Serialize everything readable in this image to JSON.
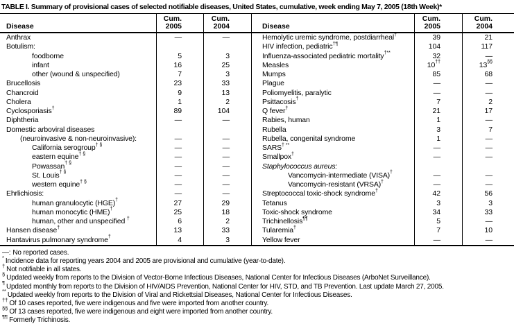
{
  "title": "TABLE I. Summary of provisional cases of selected notifiable diseases, United States, cumulative, week ending May 7, 2005 (18th Week)*",
  "table": {
    "header": {
      "disease": "Disease",
      "cum": "Cum.",
      "y2005": "2005",
      "y2004": "2004"
    },
    "left_rows": [
      {
        "label": "Anthrax",
        "sup": "",
        "indent": 0,
        "italic": false,
        "v05": "—",
        "v05sup": "",
        "v04": "—",
        "v04sup": ""
      },
      {
        "label": "Botulism:",
        "sup": "",
        "indent": 0,
        "italic": false,
        "v05": "",
        "v05sup": "",
        "v04": "",
        "v04sup": ""
      },
      {
        "label": "foodborne",
        "sup": "",
        "indent": 2,
        "italic": false,
        "v05": "5",
        "v05sup": "",
        "v04": "3",
        "v04sup": ""
      },
      {
        "label": "infant",
        "sup": "",
        "indent": 2,
        "italic": false,
        "v05": "16",
        "v05sup": "",
        "v04": "25",
        "v04sup": ""
      },
      {
        "label": "other (wound & unspecified)",
        "sup": "",
        "indent": 2,
        "italic": false,
        "v05": "7",
        "v05sup": "",
        "v04": "3",
        "v04sup": ""
      },
      {
        "label": "Brucellosis",
        "sup": "",
        "indent": 0,
        "italic": false,
        "v05": "23",
        "v05sup": "",
        "v04": "33",
        "v04sup": ""
      },
      {
        "label": "Chancroid",
        "sup": "",
        "indent": 0,
        "italic": false,
        "v05": "9",
        "v05sup": "",
        "v04": "13",
        "v04sup": ""
      },
      {
        "label": "Cholera",
        "sup": "",
        "indent": 0,
        "italic": false,
        "v05": "1",
        "v05sup": "",
        "v04": "2",
        "v04sup": ""
      },
      {
        "label": "Cyclosporiasis",
        "sup": "†",
        "indent": 0,
        "italic": false,
        "v05": "89",
        "v05sup": "",
        "v04": "104",
        "v04sup": ""
      },
      {
        "label": "Diphtheria",
        "sup": "",
        "indent": 0,
        "italic": false,
        "v05": "—",
        "v05sup": "",
        "v04": "—",
        "v04sup": ""
      },
      {
        "label": "Domestic arboviral diseases",
        "sup": "",
        "indent": 0,
        "italic": false,
        "v05": "",
        "v05sup": "",
        "v04": "",
        "v04sup": ""
      },
      {
        "label": "(neuroinvasive & non-neuroinvasive):",
        "sup": "",
        "indent": 1,
        "italic": false,
        "v05": "—",
        "v05sup": "",
        "v04": "—",
        "v04sup": ""
      },
      {
        "label": "California serogroup",
        "sup": "† §",
        "indent": 2,
        "italic": false,
        "v05": "—",
        "v05sup": "",
        "v04": "—",
        "v04sup": ""
      },
      {
        "label": "eastern equine",
        "sup": "† §",
        "indent": 2,
        "italic": false,
        "v05": "—",
        "v05sup": "",
        "v04": "—",
        "v04sup": ""
      },
      {
        "label": "Powassan",
        "sup": "† §",
        "indent": 2,
        "italic": false,
        "v05": "—",
        "v05sup": "",
        "v04": "—",
        "v04sup": ""
      },
      {
        "label": "St. Louis",
        "sup": "† §",
        "indent": 2,
        "italic": false,
        "v05": "—",
        "v05sup": "",
        "v04": "—",
        "v04sup": ""
      },
      {
        "label": "western equine",
        "sup": "† §",
        "indent": 2,
        "italic": false,
        "v05": "—",
        "v05sup": "",
        "v04": "—",
        "v04sup": ""
      },
      {
        "label": "Ehrlichiosis:",
        "sup": "",
        "indent": 0,
        "italic": false,
        "v05": "—",
        "v05sup": "",
        "v04": "—",
        "v04sup": ""
      },
      {
        "label": "human granulocytic (HGE)",
        "sup": "†",
        "indent": 2,
        "italic": false,
        "v05": "27",
        "v05sup": "",
        "v04": "29",
        "v04sup": ""
      },
      {
        "label": "human monocytic (HME)",
        "sup": "†",
        "indent": 2,
        "italic": false,
        "v05": "25",
        "v05sup": "",
        "v04": "18",
        "v04sup": ""
      },
      {
        "label": "human, other and unspecified ",
        "sup": "†",
        "indent": 2,
        "italic": false,
        "v05": "6",
        "v05sup": "",
        "v04": "2",
        "v04sup": ""
      },
      {
        "label": "Hansen disease",
        "sup": "†",
        "indent": 0,
        "italic": false,
        "v05": "13",
        "v05sup": "",
        "v04": "33",
        "v04sup": ""
      },
      {
        "label": "Hantavirus pulmonary syndrome",
        "sup": "†",
        "indent": 0,
        "italic": false,
        "v05": "4",
        "v05sup": "",
        "v04": "3",
        "v04sup": ""
      }
    ],
    "right_rows": [
      {
        "label": "Hemolytic uremic syndrome, postdiarrheal",
        "sup": "†",
        "indent": 0,
        "italic": false,
        "v05": "39",
        "v05sup": "",
        "v04": "21",
        "v04sup": ""
      },
      {
        "label": "HIV infection, pediatric",
        "sup": "†¶",
        "indent": 0,
        "italic": false,
        "v05": "104",
        "v05sup": "",
        "v04": "117",
        "v04sup": ""
      },
      {
        "label": "Influenza-associated pediatric mortality",
        "sup": "†**",
        "indent": 0,
        "italic": false,
        "v05": "32",
        "v05sup": "",
        "v04": "—",
        "v04sup": ""
      },
      {
        "label": "Measles",
        "sup": "",
        "indent": 0,
        "italic": false,
        "v05": "10",
        "v05sup": "††",
        "v04": "13",
        "v04sup": "§§"
      },
      {
        "label": "Mumps",
        "sup": "",
        "indent": 0,
        "italic": false,
        "v05": "85",
        "v05sup": "",
        "v04": "68",
        "v04sup": ""
      },
      {
        "label": "Plague",
        "sup": "",
        "indent": 0,
        "italic": false,
        "v05": "—",
        "v05sup": "",
        "v04": "—",
        "v04sup": ""
      },
      {
        "label": "Poliomyelitis, paralytic",
        "sup": "",
        "indent": 0,
        "italic": false,
        "v05": "—",
        "v05sup": "",
        "v04": "—",
        "v04sup": ""
      },
      {
        "label": "Psittacosis",
        "sup": "†",
        "indent": 0,
        "italic": false,
        "v05": "7",
        "v05sup": "",
        "v04": "2",
        "v04sup": ""
      },
      {
        "label": "Q fever",
        "sup": "†",
        "indent": 0,
        "italic": false,
        "v05": "21",
        "v05sup": "",
        "v04": "17",
        "v04sup": ""
      },
      {
        "label": "Rabies, human",
        "sup": "",
        "indent": 0,
        "italic": false,
        "v05": "1",
        "v05sup": "",
        "v04": "—",
        "v04sup": ""
      },
      {
        "label": "Rubella",
        "sup": "",
        "indent": 0,
        "italic": false,
        "v05": "3",
        "v05sup": "",
        "v04": "7",
        "v04sup": ""
      },
      {
        "label": "Rubella, congenital syndrome",
        "sup": "",
        "indent": 0,
        "italic": false,
        "v05": "1",
        "v05sup": "",
        "v04": "—",
        "v04sup": ""
      },
      {
        "label": "SARS",
        "sup": "† **",
        "indent": 0,
        "italic": false,
        "v05": "—",
        "v05sup": "",
        "v04": "—",
        "v04sup": ""
      },
      {
        "label": "Smallpox",
        "sup": "†",
        "indent": 0,
        "italic": false,
        "v05": "—",
        "v05sup": "",
        "v04": "—",
        "v04sup": ""
      },
      {
        "label": "Staphylococcus aureus:",
        "sup": "",
        "indent": 0,
        "italic": true,
        "v05": "",
        "v05sup": "",
        "v04": "",
        "v04sup": ""
      },
      {
        "label": "Vancomycin-intermediate (VISA)",
        "sup": "†",
        "indent": 2,
        "italic": false,
        "v05": "—",
        "v05sup": "",
        "v04": "—",
        "v04sup": ""
      },
      {
        "label": "Vancomycin-resistant (VRSA)",
        "sup": "†",
        "indent": 2,
        "italic": false,
        "v05": "—",
        "v05sup": "",
        "v04": "—",
        "v04sup": ""
      },
      {
        "label": "Streptococcal toxic-shock syndrome",
        "sup": "†",
        "indent": 0,
        "italic": false,
        "v05": "42",
        "v05sup": "",
        "v04": "56",
        "v04sup": ""
      },
      {
        "label": "Tetanus",
        "sup": "",
        "indent": 0,
        "italic": false,
        "v05": "3",
        "v05sup": "",
        "v04": "3",
        "v04sup": ""
      },
      {
        "label": "Toxic-shock syndrome",
        "sup": "",
        "indent": 0,
        "italic": false,
        "v05": "34",
        "v05sup": "",
        "v04": "33",
        "v04sup": ""
      },
      {
        "label": "Trichinellosis",
        "sup": "¶¶",
        "indent": 0,
        "italic": false,
        "v05": "5",
        "v05sup": "",
        "v04": "—",
        "v04sup": ""
      },
      {
        "label": "Tularemia",
        "sup": "†",
        "indent": 0,
        "italic": false,
        "v05": "7",
        "v05sup": "",
        "v04": "10",
        "v04sup": ""
      },
      {
        "label": "Yellow fever",
        "sup": "",
        "indent": 0,
        "italic": false,
        "v05": "—",
        "v05sup": "",
        "v04": "—",
        "v04sup": ""
      }
    ]
  },
  "footnotes": [
    {
      "marker": "—:",
      "superscript": false,
      "text": "No reported cases."
    },
    {
      "marker": "*",
      "superscript": true,
      "text": "Incidence data for reporting years 2004 and 2005 are provisional and cumulative (year-to-date)."
    },
    {
      "marker": "†",
      "superscript": true,
      "text": "Not notifiable in all states."
    },
    {
      "marker": "§",
      "superscript": true,
      "text": "Updated weekly from reports to the Division of Vector-Borne Infectious Diseases, National Center for Infectious Diseases (ArboNet Surveillance)."
    },
    {
      "marker": "¶",
      "superscript": true,
      "text": "Updated monthly from reports to the Division of HIV/AIDS Prevention, National Center for HIV, STD, and TB Prevention. Last update March 27, 2005."
    },
    {
      "marker": "**",
      "superscript": true,
      "text": "Updated weekly from reports to the Division of Viral and Rickettsial Diseases, National Center for Infectious Diseases."
    },
    {
      "marker": "††",
      "superscript": true,
      "text": "Of 10 cases reported, five were indigenous and five were imported from another country."
    },
    {
      "marker": "§§",
      "superscript": true,
      "text": "Of 13 cases reported, five were indigenous and eight were imported from another country."
    },
    {
      "marker": "¶¶",
      "superscript": true,
      "text": "Formerly Trichinosis."
    }
  ]
}
